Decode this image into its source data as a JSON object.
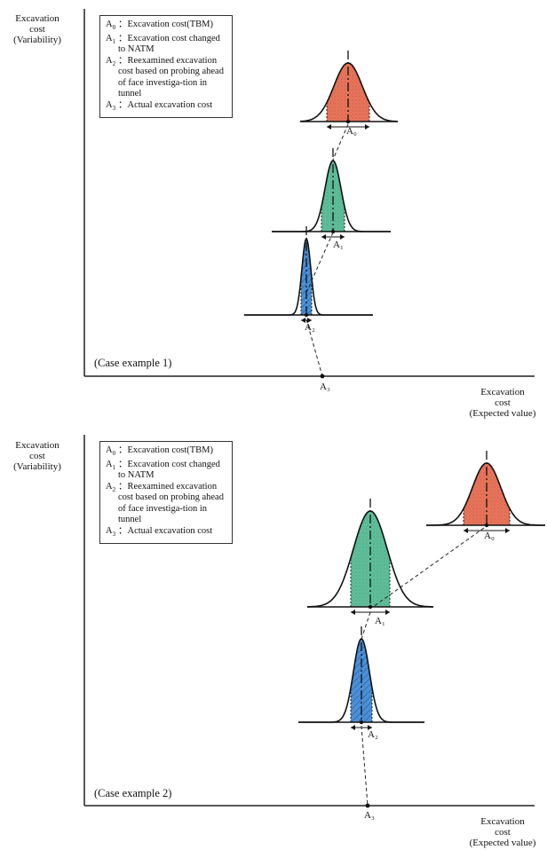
{
  "diagram": {
    "panel1": {
      "y_axis_label": [
        "Excavation",
        "cost",
        "(Variability)"
      ],
      "case_label": "(Case example 1)",
      "legend": [
        {
          "key": "A",
          "sub": "0",
          "text": "：Excavation cost(TBM)"
        },
        {
          "key": "A",
          "sub": "1",
          "text": "：Excavation cost changed to NATM"
        },
        {
          "key": "A",
          "sub": "2",
          "text": "：Reexamined excavation cost based on probing ahead of face investiga-tion in tunnel"
        },
        {
          "key": "A",
          "sub": "3",
          "text": "：Actual excavation cost"
        }
      ],
      "points": [
        "A₀",
        "A₁",
        "A₂",
        "A₃"
      ]
    },
    "panel2": {
      "y_axis_label": [
        "Excavation",
        "cost",
        "(Variability)"
      ],
      "x_axis_label": [
        "Excavation",
        "cost",
        "(Expected value)"
      ],
      "case_label": "(Case example 2)",
      "legend": [
        {
          "key": "A",
          "sub": "0",
          "text": "：Excavation cost(TBM)"
        },
        {
          "key": "A",
          "sub": "1",
          "text": "：Excavation cost changed to NATM"
        },
        {
          "key": "A",
          "sub": "2",
          "text": "：Reexamined excavation cost based on probing ahead of face investiga-tion in tunnel"
        },
        {
          "key": "A",
          "sub": "3",
          "text": "：Actual excavation cost"
        }
      ],
      "points": [
        "A₀",
        "A₁",
        "A₂",
        "A₃"
      ]
    },
    "colors": {
      "A0_fill": "#e8745a",
      "A1_fill": "#5fbf9a",
      "A2_fill": "#4a90d9"
    }
  }
}
